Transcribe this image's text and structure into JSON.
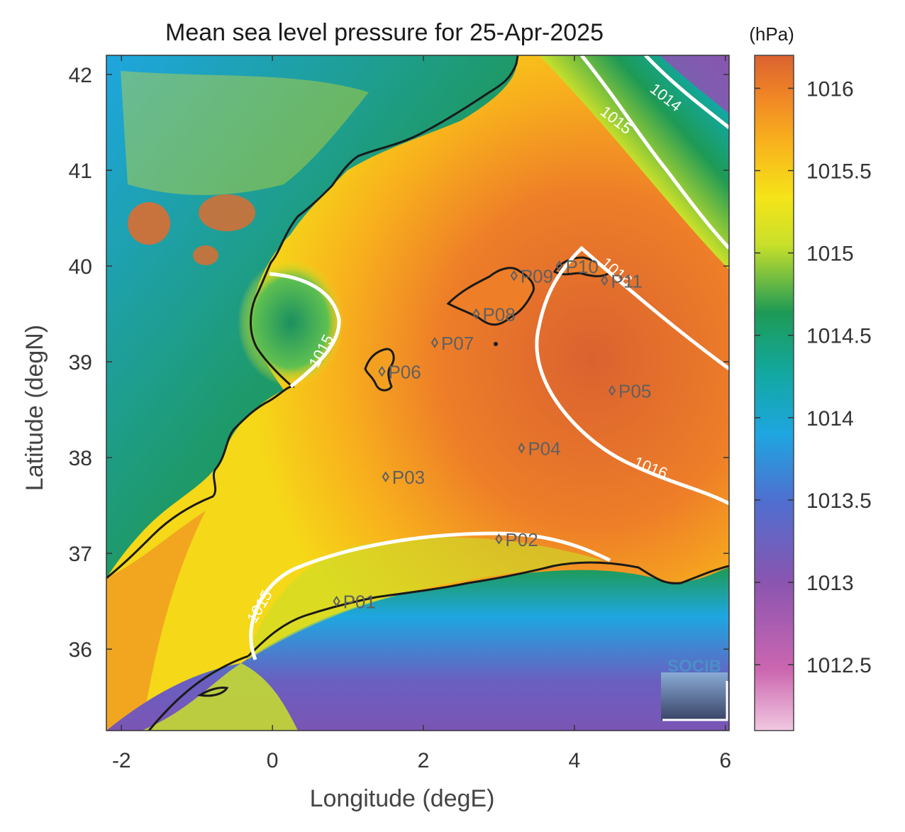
{
  "title": "Mean sea level pressure for 25-Apr-2025",
  "xlabel": "Longitude (degE)",
  "ylabel": "Latitude (degN)",
  "colorbar_unit": "(hPa)",
  "x_ticks": [
    "-2",
    "0",
    "2",
    "4",
    "6"
  ],
  "y_ticks": [
    "42",
    "41",
    "40",
    "39",
    "38",
    "37",
    "36"
  ],
  "colorbar_ticks": [
    "1016",
    "1015.5",
    "1015",
    "1014.5",
    "1014",
    "1013.5",
    "1013",
    "1012.5"
  ],
  "logo_text": "SOCIB",
  "chart_data": {
    "type": "heatmap",
    "title": "Mean sea level pressure for 25-Apr-2025",
    "xlabel": "Longitude (degE)",
    "ylabel": "Latitude (degN)",
    "xlim": [
      -2.2,
      6.05
    ],
    "ylim": [
      35.15,
      42.2
    ],
    "clim": [
      1012.1,
      1016.2
    ],
    "colorbar_unit": "(hPa)",
    "colormap": [
      "#f0c8e0",
      "#cc66b0",
      "#8a55b0",
      "#4f6fd0",
      "#1ea6e0",
      "#12a8a0",
      "#1e9a55",
      "#c9e02a",
      "#f5e418",
      "#f8b21c",
      "#f08526",
      "#da6230"
    ],
    "isobars": [
      {
        "level": 1014,
        "label": "1014"
      },
      {
        "level": 1015,
        "label": "1015"
      },
      {
        "level": 1016,
        "label": "1016"
      }
    ],
    "stations": [
      {
        "name": "P01",
        "lon": 0.85,
        "lat": 36.5
      },
      {
        "name": "P02",
        "lon": 3.0,
        "lat": 37.15
      },
      {
        "name": "P03",
        "lon": 1.5,
        "lat": 37.8
      },
      {
        "name": "P04",
        "lon": 3.3,
        "lat": 38.1
      },
      {
        "name": "P05",
        "lon": 4.5,
        "lat": 38.7
      },
      {
        "name": "P06",
        "lon": 1.45,
        "lat": 38.9
      },
      {
        "name": "P07",
        "lon": 2.15,
        "lat": 39.2
      },
      {
        "name": "P08",
        "lon": 2.7,
        "lat": 39.5
      },
      {
        "name": "P09",
        "lon": 3.2,
        "lat": 39.9
      },
      {
        "name": "P10",
        "lon": 3.8,
        "lat": 40.0
      },
      {
        "name": "P11",
        "lon": 4.4,
        "lat": 39.85
      }
    ]
  }
}
